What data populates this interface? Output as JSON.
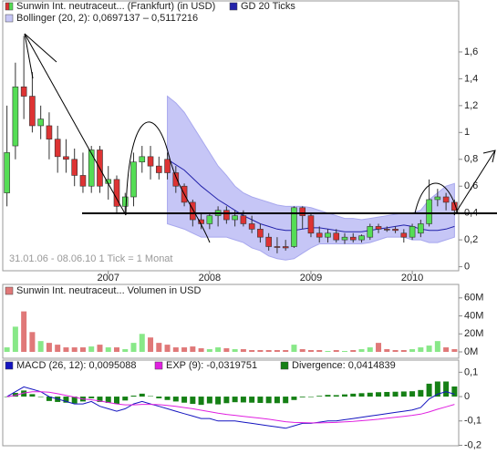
{
  "chart_data": [
    {
      "type": "candlestick",
      "name": "Sunwin Int. neutraceut... (Frankfurt) (in USD)",
      "annotation": "31.01.06 - 08.06.10   1 Tick = 1 Monat",
      "up_color": "#55dd55",
      "down_color": "#dd3333",
      "xlim": [
        -0.5,
        53.5
      ],
      "xticks": [
        {
          "value": 12,
          "label": "2007"
        },
        {
          "value": 24,
          "label": "2008"
        },
        {
          "value": 36,
          "label": "2009"
        },
        {
          "value": 48,
          "label": "2010"
        }
      ],
      "ylim": [
        -0.03,
        1.98
      ],
      "yticks": [
        0,
        {
          "value": 0.2,
          "label": "0,2"
        },
        {
          "value": 0.4,
          "label": "0,4"
        },
        {
          "value": 0.6,
          "label": "0,6"
        },
        {
          "value": 0.8,
          "label": "0,8"
        },
        1,
        {
          "value": 1.2,
          "label": "1,2"
        },
        {
          "value": 1.4,
          "label": "1,4"
        },
        {
          "value": 1.6,
          "label": "1,6"
        }
      ],
      "open": [
        0.55,
        0.9,
        1.34,
        1.27,
        1.05,
        1.05,
        0.95,
        0.82,
        0.8,
        0.68,
        0.6,
        0.87,
        0.62,
        0.65,
        0.45,
        0.52,
        0.78,
        0.82,
        0.75,
        0.8,
        0.7,
        0.6,
        0.48,
        0.35,
        0.32,
        0.38,
        0.42,
        0.35,
        0.38,
        0.32,
        0.28,
        0.22,
        0.15,
        0.15,
        0.15,
        0.44,
        0.38,
        0.25,
        0.22,
        0.25,
        0.2,
        0.22,
        0.2,
        0.22,
        0.3,
        0.28,
        0.28,
        0.25,
        0.22,
        0.25,
        0.32,
        0.5,
        0.52,
        0.48
      ],
      "high": [
        1.2,
        1.52,
        1.72,
        1.45,
        1.2,
        1.15,
        1.05,
        0.95,
        0.88,
        0.85,
        0.9,
        0.9,
        0.75,
        0.68,
        0.55,
        0.85,
        0.9,
        0.9,
        0.82,
        0.85,
        0.75,
        0.62,
        0.5,
        0.4,
        0.4,
        0.45,
        0.45,
        0.42,
        0.42,
        0.38,
        0.32,
        0.25,
        0.22,
        0.2,
        0.45,
        0.45,
        0.4,
        0.3,
        0.28,
        0.28,
        0.25,
        0.25,
        0.24,
        0.32,
        0.32,
        0.3,
        0.3,
        0.28,
        0.32,
        0.35,
        0.65,
        0.58,
        0.55,
        0.5
      ],
      "low": [
        0.45,
        0.8,
        1.1,
        1.0,
        0.95,
        0.8,
        0.7,
        0.7,
        0.6,
        0.55,
        0.55,
        0.55,
        0.5,
        0.4,
        0.4,
        0.45,
        0.7,
        0.65,
        0.65,
        0.65,
        0.55,
        0.45,
        0.3,
        0.28,
        0.28,
        0.3,
        0.32,
        0.3,
        0.3,
        0.25,
        0.18,
        0.12,
        0.1,
        0.12,
        0.14,
        0.28,
        0.22,
        0.18,
        0.18,
        0.18,
        0.17,
        0.18,
        0.18,
        0.2,
        0.25,
        0.26,
        0.25,
        0.18,
        0.2,
        0.22,
        0.3,
        0.45,
        0.42,
        0.4
      ],
      "close": [
        0.85,
        1.34,
        1.27,
        1.05,
        1.1,
        0.95,
        0.82,
        0.8,
        0.68,
        0.6,
        0.87,
        0.6,
        0.65,
        0.45,
        0.52,
        0.78,
        0.82,
        0.75,
        0.7,
        0.7,
        0.6,
        0.48,
        0.35,
        0.32,
        0.38,
        0.42,
        0.35,
        0.38,
        0.32,
        0.28,
        0.22,
        0.15,
        0.15,
        0.14,
        0.44,
        0.38,
        0.25,
        0.22,
        0.25,
        0.2,
        0.22,
        0.2,
        0.23,
        0.3,
        0.28,
        0.28,
        0.27,
        0.22,
        0.3,
        0.32,
        0.5,
        0.52,
        0.48,
        0.42
      ],
      "average": {
        "name": "GD 20 Ticks",
        "color": "#2222aa",
        "values": [
          null,
          null,
          null,
          null,
          null,
          null,
          null,
          null,
          null,
          null,
          null,
          null,
          null,
          null,
          null,
          null,
          null,
          null,
          null,
          0.8,
          0.76,
          0.72,
          0.66,
          0.6,
          0.55,
          0.5,
          0.46,
          0.42,
          0.38,
          0.35,
          0.32,
          0.3,
          0.28,
          0.27,
          0.27,
          0.28,
          0.29,
          0.29,
          0.28,
          0.27,
          0.26,
          0.26,
          0.26,
          0.27,
          0.28,
          0.29,
          0.3,
          0.31,
          0.3,
          0.28,
          0.27,
          0.27,
          0.28,
          0.3
        ]
      },
      "band": {
        "name": "Bollinger (20, 2): 0,0697137 – 0,5117216",
        "color": "#c6c6f6",
        "upper": [
          null,
          null,
          null,
          null,
          null,
          null,
          null,
          null,
          null,
          null,
          null,
          null,
          null,
          null,
          null,
          null,
          null,
          null,
          null,
          1.27,
          1.22,
          1.15,
          1.05,
          0.95,
          0.85,
          0.75,
          0.68,
          0.6,
          0.55,
          0.52,
          0.5,
          0.48,
          0.46,
          0.45,
          0.45,
          0.45,
          0.44,
          0.42,
          0.4,
          0.38,
          0.36,
          0.36,
          0.35,
          0.36,
          0.37,
          0.38,
          0.39,
          0.4,
          0.4,
          0.42,
          0.5,
          0.55,
          0.6,
          0.62
        ],
        "lower": [
          null,
          null,
          null,
          null,
          null,
          null,
          null,
          null,
          null,
          null,
          null,
          null,
          null,
          null,
          null,
          null,
          null,
          null,
          null,
          0.32,
          0.3,
          0.28,
          0.25,
          0.22,
          0.22,
          0.22,
          0.22,
          0.2,
          0.18,
          0.14,
          0.12,
          0.08,
          0.06,
          0.05,
          0.06,
          0.1,
          0.14,
          0.17,
          0.17,
          0.17,
          0.17,
          0.17,
          0.17,
          0.18,
          0.2,
          0.22,
          0.22,
          0.22,
          0.2,
          0.2,
          0.18,
          0.18,
          0.2,
          0.22
        ]
      }
    },
    {
      "type": "bar",
      "title": "Sunwin Int. neutraceut... Volumen in USD",
      "up_color": "#88e888",
      "down_color": "#e07878",
      "xlim": [
        -0.5,
        53.5
      ],
      "ylim": [
        -7100000,
        75000000
      ],
      "yticks": [
        {
          "value": 0,
          "label": "0M"
        },
        {
          "value": 20000000,
          "label": "20M"
        },
        {
          "value": 40000000,
          "label": "40M"
        },
        {
          "value": 60000000,
          "label": "60M"
        }
      ],
      "values": [
        5000000,
        28000000,
        45000000,
        22000000,
        12000000,
        10000000,
        8000000,
        5000000,
        5000000,
        5000000,
        6000000,
        8000000,
        5000000,
        5000000,
        3000000,
        10000000,
        20000000,
        16000000,
        10000000,
        8000000,
        5000000,
        5000000,
        6000000,
        4000000,
        3000000,
        5000000,
        4000000,
        3000000,
        3000000,
        2000000,
        2000000,
        2000000,
        2000000,
        2000000,
        8000000,
        3000000,
        2000000,
        2000000,
        1000000,
        2000000,
        1000000,
        2000000,
        3000000,
        5000000,
        10000000,
        3000000,
        2000000,
        2000000,
        3000000,
        5000000,
        7000000,
        12000000,
        5000000,
        3000000
      ]
    },
    {
      "type": "macd",
      "xlim": [
        -0.5,
        53.5
      ],
      "ylim": [
        -0.202,
        0.15
      ],
      "yticks": [
        {
          "value": 0.1,
          "label": "0,1"
        },
        0,
        {
          "value": -0.1,
          "label": "-0,1"
        },
        {
          "value": -0.2,
          "label": "-0,2"
        }
      ],
      "series": [
        {
          "name": "MACD (26, 12): 0,0095088",
          "color": "#1414c0",
          "style": "line",
          "values": [
            0.0,
            0.02,
            0.04,
            0.03,
            0.02,
            0.0,
            -0.01,
            -0.02,
            -0.03,
            -0.03,
            -0.02,
            -0.04,
            -0.05,
            -0.06,
            -0.05,
            -0.03,
            -0.02,
            -0.03,
            -0.04,
            -0.05,
            -0.06,
            -0.07,
            -0.08,
            -0.09,
            -0.09,
            -0.1,
            -0.1,
            -0.1,
            -0.105,
            -0.11,
            -0.115,
            -0.12,
            -0.125,
            -0.13,
            -0.12,
            -0.11,
            -0.11,
            -0.105,
            -0.1,
            -0.1,
            -0.095,
            -0.09,
            -0.085,
            -0.08,
            -0.075,
            -0.07,
            -0.065,
            -0.06,
            -0.055,
            -0.045,
            -0.01,
            0.01,
            0.02,
            0.0095088
          ]
        },
        {
          "name": "EXP (9): -0,0319751",
          "color": "#e020e0",
          "style": "line",
          "values": [
            0.0,
            0.005,
            0.015,
            0.02,
            0.02,
            0.018,
            0.012,
            0.005,
            -0.002,
            -0.01,
            -0.013,
            -0.018,
            -0.024,
            -0.03,
            -0.034,
            -0.034,
            -0.032,
            -0.032,
            -0.033,
            -0.036,
            -0.04,
            -0.045,
            -0.05,
            -0.056,
            -0.062,
            -0.068,
            -0.073,
            -0.077,
            -0.081,
            -0.085,
            -0.089,
            -0.093,
            -0.098,
            -0.103,
            -0.106,
            -0.107,
            -0.108,
            -0.108,
            -0.107,
            -0.106,
            -0.104,
            -0.102,
            -0.099,
            -0.096,
            -0.093,
            -0.089,
            -0.085,
            -0.081,
            -0.077,
            -0.072,
            -0.063,
            -0.052,
            -0.042,
            -0.0319751
          ]
        },
        {
          "name": "Divergence: 0,0414839",
          "color": "#158015",
          "style": "bar",
          "values": [
            0.0,
            0.015,
            0.025,
            0.01,
            0.0,
            -0.018,
            -0.022,
            -0.025,
            -0.028,
            -0.02,
            -0.007,
            -0.022,
            -0.026,
            -0.03,
            -0.016,
            0.004,
            0.012,
            0.002,
            -0.007,
            -0.014,
            -0.02,
            -0.025,
            -0.03,
            -0.034,
            -0.028,
            -0.032,
            -0.027,
            -0.023,
            -0.024,
            -0.025,
            -0.026,
            -0.027,
            -0.027,
            -0.027,
            -0.014,
            -0.003,
            -0.002,
            0.003,
            0.007,
            0.006,
            0.009,
            0.012,
            0.014,
            0.016,
            0.018,
            0.019,
            0.02,
            0.021,
            0.022,
            0.027,
            0.053,
            0.062,
            0.062,
            0.0414839
          ]
        }
      ]
    }
  ]
}
